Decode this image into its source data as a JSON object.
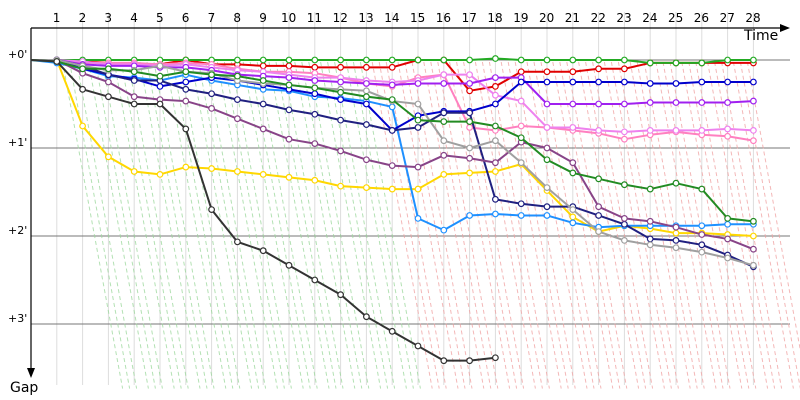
{
  "chart_data": {
    "type": "line",
    "xlabel": "Time",
    "ylabel": "Gap",
    "laps": [
      "1",
      "2",
      "3",
      "4",
      "5",
      "6",
      "7",
      "8",
      "9",
      "10",
      "11",
      "12",
      "13",
      "14",
      "15",
      "16",
      "17",
      "18",
      "19",
      "20",
      "21",
      "22",
      "23",
      "24",
      "25",
      "26",
      "27",
      "28"
    ],
    "gap_ticks": [
      {
        "label": "+0'",
        "value": 0
      },
      {
        "label": "+1'",
        "value": 60
      },
      {
        "label": "+2'",
        "value": 120
      },
      {
        "label": "+3'",
        "value": 180
      }
    ],
    "ylim": [
      -2,
      224
    ],
    "grid": true,
    "series": [
      {
        "color": "#e00000",
        "values": [
          0,
          1,
          2,
          3,
          3,
          0,
          3,
          3,
          4,
          4,
          5,
          5,
          5,
          5,
          0,
          0,
          21,
          18,
          8,
          8,
          8,
          6,
          6,
          2,
          2,
          2,
          2,
          2
        ]
      },
      {
        "color": "#22aa22",
        "values": [
          0,
          0,
          0,
          0,
          0,
          0,
          0,
          0,
          0,
          0,
          0,
          0,
          0,
          0,
          0,
          0,
          0,
          -1,
          0,
          0,
          0,
          0,
          0,
          2,
          2,
          2,
          0,
          0
        ]
      },
      {
        "color": "#ffd700",
        "values": [
          0,
          45,
          66,
          76,
          78,
          73,
          74,
          76,
          78,
          80,
          82,
          86,
          87,
          88,
          88,
          78,
          77,
          76,
          71,
          89,
          107,
          117,
          113,
          115,
          118,
          118,
          119,
          120
        ]
      },
      {
        "color": "#1e90ff",
        "values": [
          2,
          6,
          11,
          12,
          14,
          10,
          14,
          17,
          20,
          21,
          25,
          26,
          28,
          32,
          108,
          116,
          106,
          105,
          106,
          106,
          111,
          114,
          113,
          113,
          113,
          113,
          112,
          112
        ]
      },
      {
        "color": "#ff80c0",
        "values": [
          0,
          2,
          2,
          2,
          3,
          2,
          3,
          6,
          8,
          8,
          9,
          12,
          16,
          18,
          12,
          10,
          46,
          48,
          45,
          46,
          48,
          50,
          54,
          51,
          49,
          51,
          52,
          55
        ]
      },
      {
        "color": "#ee82ee",
        "values": [
          0,
          1,
          3,
          3,
          4,
          3,
          5,
          7,
          8,
          10,
          12,
          12,
          14,
          15,
          14,
          10,
          10,
          24,
          28,
          46,
          46,
          48,
          49,
          48,
          48,
          48,
          47,
          48
        ]
      },
      {
        "color": "#a020f0",
        "values": [
          0,
          3,
          4,
          4,
          5,
          5,
          7,
          10,
          11,
          12,
          14,
          15,
          16,
          17,
          16,
          16,
          16,
          12,
          12,
          30,
          30,
          30,
          30,
          29,
          29,
          29,
          29,
          28
        ]
      },
      {
        "color": "#0000cc",
        "values": [
          0,
          6,
          10,
          13,
          18,
          15,
          12,
          14,
          17,
          20,
          23,
          27,
          30,
          48,
          38,
          35,
          35,
          30,
          15,
          15,
          15,
          15,
          15,
          16,
          16,
          15,
          15,
          15
        ]
      },
      {
        "color": "#202080",
        "values": [
          0,
          4,
          10,
          14,
          14,
          20,
          23,
          27,
          30,
          34,
          37,
          41,
          44,
          48,
          46,
          36,
          36,
          95,
          98,
          100,
          100,
          106,
          112,
          122,
          123,
          126,
          133,
          141
        ]
      },
      {
        "color": "#884488",
        "values": [
          0,
          9,
          15,
          25,
          27,
          28,
          33,
          40,
          47,
          54,
          57,
          62,
          68,
          72,
          73,
          65,
          67,
          70,
          56,
          60,
          70,
          100,
          108,
          110,
          114,
          119,
          122,
          129
        ]
      },
      {
        "color": "#a0a0a0",
        "values": [
          0,
          4,
          7,
          7,
          4,
          8,
          9,
          14,
          16,
          17,
          19,
          20,
          21,
          28,
          30,
          55,
          60,
          55,
          70,
          87,
          102,
          117,
          123,
          126,
          128,
          131,
          135,
          140
        ]
      },
      {
        "color": "#228b22",
        "values": [
          1,
          6,
          6,
          8,
          11,
          8,
          10,
          11,
          14,
          17,
          19,
          22,
          25,
          27,
          41,
          42,
          42,
          45,
          53,
          68,
          77,
          81,
          85,
          88,
          84,
          88,
          108,
          110
        ]
      },
      {
        "color": "#333333",
        "values": [
          1,
          20,
          25,
          30,
          30,
          47,
          102,
          124,
          130,
          140,
          150,
          160,
          175,
          185,
          195,
          205,
          205,
          203
        ]
      }
    ]
  }
}
